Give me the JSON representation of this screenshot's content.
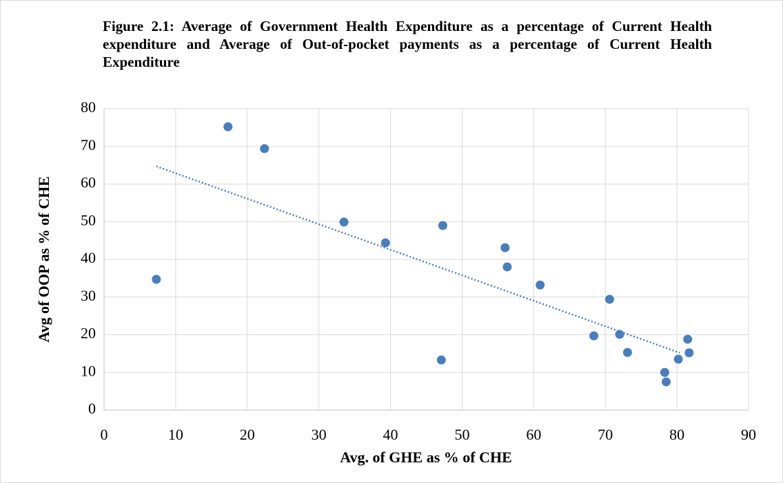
{
  "chart_data": {
    "type": "scatter",
    "title": "Figure 2.1: Average of Government Health Expenditure as a percentage of Current Health expenditure and Average of Out-of-pocket payments as a percentage of Current Health Expenditure",
    "x_label": "Avg. of GHE as % of CHE",
    "y_label": "Avg of OOP as % of CHE",
    "series": [
      {
        "color": "#4a7ebb",
        "x": [
          7.3,
          17.3,
          22.4,
          33.5,
          39.3,
          47.3,
          47.1,
          56.0,
          56.3,
          60.9,
          68.4,
          70.6,
          72.0,
          73.1,
          78.3,
          78.5,
          80.2,
          81.5,
          81.7
        ],
        "values": [
          34.7,
          75.2,
          69.4,
          49.9,
          44.4,
          49.0,
          13.3,
          43.1,
          38.0,
          33.2,
          19.7,
          29.4,
          20.1,
          15.3,
          10.0,
          7.5,
          13.5,
          18.8,
          15.2
        ]
      }
    ],
    "trendline": {
      "color": "#4a7ebb",
      "x": [
        7.3,
        80.4
      ],
      "values": [
        64.7,
        15.2
      ]
    },
    "xlim": [
      0,
      90
    ],
    "xticks": [
      0,
      10,
      20,
      30,
      40,
      50,
      60,
      70,
      80,
      90
    ],
    "ylim": [
      0,
      80
    ],
    "yticks": [
      0,
      10,
      20,
      30,
      40,
      50,
      60,
      70,
      80
    ],
    "grid": true
  }
}
